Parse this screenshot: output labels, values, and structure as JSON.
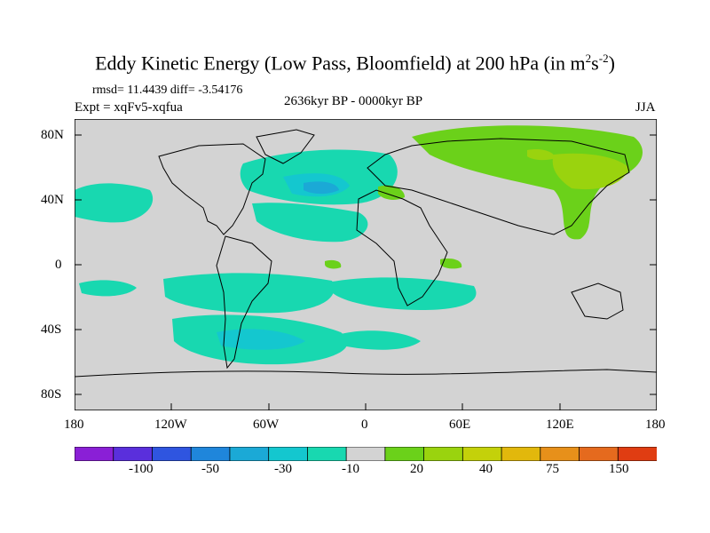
{
  "title": {
    "main": "Eddy Kinetic Energy (Low Pass, Bloomfield) at 200 hPa (in m",
    "sup1": "2",
    "mid": "s",
    "sup2": "-2",
    "end": ")"
  },
  "stats_line": "rmsd= 11.4439 diff= -3.54176",
  "experiment": "Expt = xqFv5-xqfua",
  "period": "2636kyr BP - 0000kyr BP",
  "season": "JJA",
  "map": {
    "lon_range": [
      -180,
      180
    ],
    "lat_range": [
      -90,
      90
    ],
    "y_ticks": [
      "80N",
      "40N",
      "0",
      "40S",
      "80S"
    ],
    "x_ticks": [
      "180",
      "120W",
      "60W",
      "0",
      "60E",
      "120E",
      "180"
    ],
    "background_color": "#d3d3d3"
  },
  "colorbar": {
    "labels": [
      "-100",
      "-50",
      "-30",
      "-10",
      "20",
      "40",
      "75",
      "150"
    ],
    "colors": [
      "#8a1fd6",
      "#5a2fdc",
      "#2f55e0",
      "#1f86db",
      "#1ba9d6",
      "#14c7cf",
      "#18d8b0",
      "#d3d3d3",
      "#6bd11a",
      "#9ad30e",
      "#c4d10a",
      "#e2b80c",
      "#e7901a",
      "#e56a1e",
      "#e03d12"
    ]
  }
}
